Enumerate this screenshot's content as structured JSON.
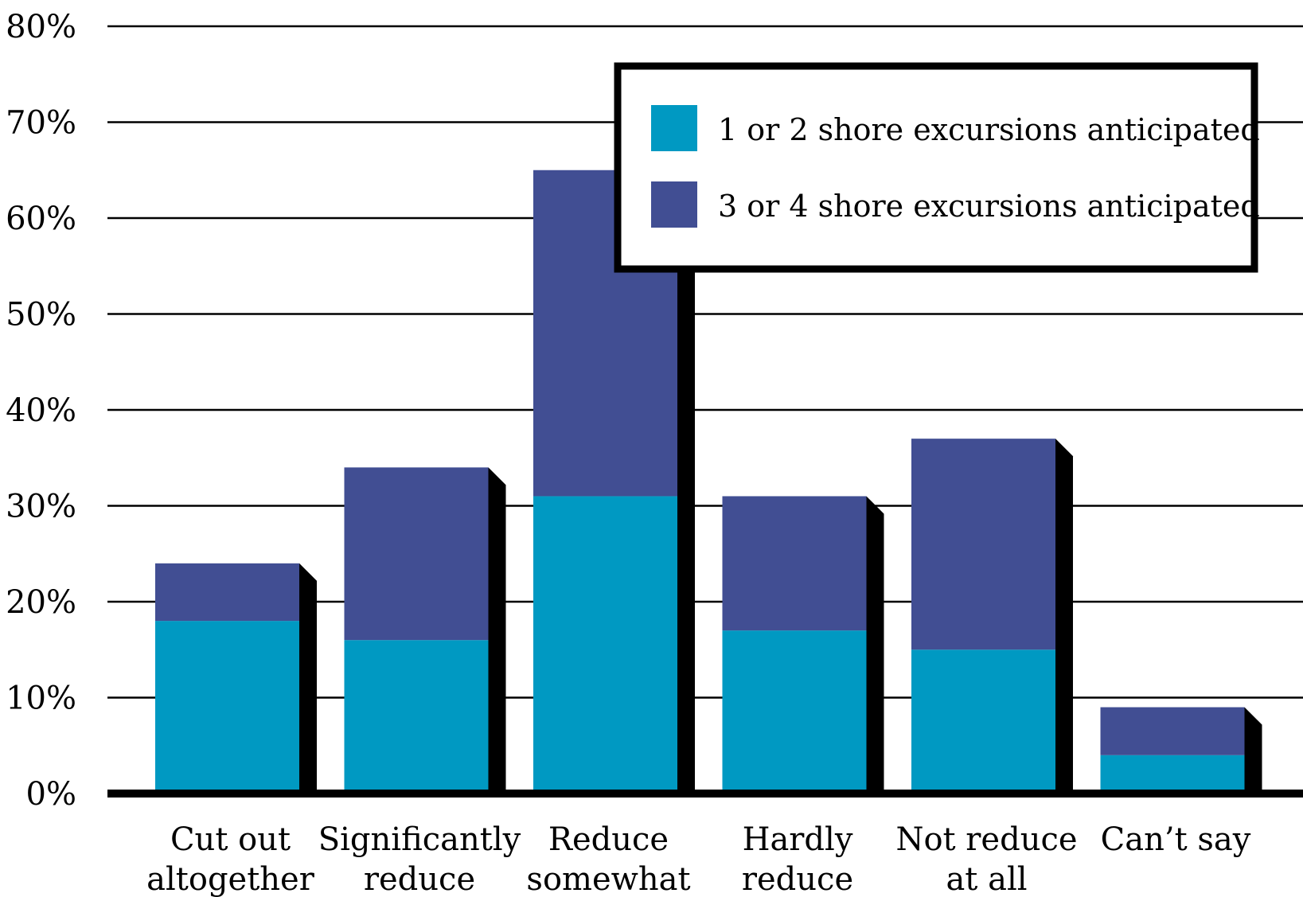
{
  "chart_data": {
    "type": "bar",
    "stacked": true,
    "categories": [
      [
        "Cut out",
        "altogether"
      ],
      [
        "Significantly",
        "reduce"
      ],
      [
        "Reduce",
        "somewhat"
      ],
      [
        "Hardly",
        "reduce"
      ],
      [
        "Not reduce",
        "at all"
      ],
      [
        "Can’t say"
      ]
    ],
    "series": [
      {
        "name": "1 or 2 shore excursions anticipated",
        "color": "#0099C2",
        "values": [
          18,
          16,
          31,
          17,
          15,
          4
        ]
      },
      {
        "name": "3 or 4 shore excursions anticipated",
        "color": "#414E93",
        "values": [
          6,
          18,
          34,
          14,
          22,
          5
        ]
      }
    ],
    "y_ticks": [
      "0%",
      "10%",
      "20%",
      "30%",
      "40%",
      "50%",
      "60%",
      "70%",
      "80%"
    ],
    "ylim": [
      0,
      80
    ],
    "grid": true,
    "legend_position": "top-right",
    "title": "",
    "xlabel": "",
    "ylabel": ""
  }
}
